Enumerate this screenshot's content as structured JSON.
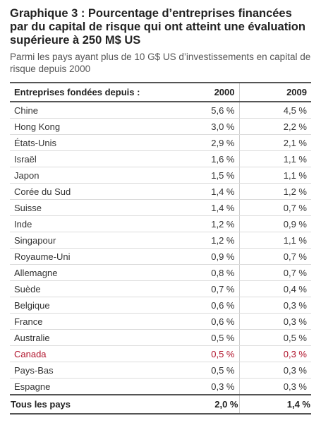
{
  "chart_data": {
    "type": "table",
    "title": "Graphique 3 : Pourcentage d’entreprises financées par du capital de risque qui ont atteint une évaluation supérieure à 250 M$ US",
    "subtitle": "Parmi les pays ayant plus de 10 G$ US d’investissements en capital de risque depuis 2000",
    "columns": [
      "Entreprises fondées depuis :",
      "2000",
      "2009"
    ],
    "rows": [
      {
        "country": "Chine",
        "v2000": "5,6 %",
        "v2009": "4,5 %"
      },
      {
        "country": "Hong Kong",
        "v2000": "3,0 %",
        "v2009": "2,2 %"
      },
      {
        "country": "États-Unis",
        "v2000": "2,9 %",
        "v2009": "2,1 %"
      },
      {
        "country": "Israël",
        "v2000": "1,6 %",
        "v2009": "1,1 %"
      },
      {
        "country": "Japon",
        "v2000": "1,5 %",
        "v2009": "1,1 %"
      },
      {
        "country": "Corée du Sud",
        "v2000": "1,4 %",
        "v2009": "1,2 %"
      },
      {
        "country": "Suisse",
        "v2000": "1,4 %",
        "v2009": "0,7 %"
      },
      {
        "country": "Inde",
        "v2000": "1,2 %",
        "v2009": "0,9 %"
      },
      {
        "country": "Singapour",
        "v2000": "1,2 %",
        "v2009": "1,1 %"
      },
      {
        "country": "Royaume-Uni",
        "v2000": "0,9 %",
        "v2009": "0,7 %"
      },
      {
        "country": "Allemagne",
        "v2000": "0,8 %",
        "v2009": "0,7 %"
      },
      {
        "country": "Suède",
        "v2000": "0,7 %",
        "v2009": "0,4 %"
      },
      {
        "country": "Belgique",
        "v2000": "0,6 %",
        "v2009": "0,3 %"
      },
      {
        "country": "France",
        "v2000": "0,6 %",
        "v2009": "0,3 %"
      },
      {
        "country": "Australie",
        "v2000": "0,5 %",
        "v2009": "0,5 %"
      },
      {
        "country": "Canada",
        "v2000": "0,5 %",
        "v2009": "0,3 %",
        "highlight": true
      },
      {
        "country": "Pays-Bas",
        "v2000": "0,5 %",
        "v2009": "0,3 %"
      },
      {
        "country": "Espagne",
        "v2000": "0,3 %",
        "v2009": "0,3 %"
      }
    ],
    "total": {
      "country": "Tous les pays",
      "v2000": "2,0 %",
      "v2009": "1,4 %"
    },
    "colors": {
      "highlight": "#b0122a",
      "text": "#333333",
      "rule": "#555555"
    }
  }
}
